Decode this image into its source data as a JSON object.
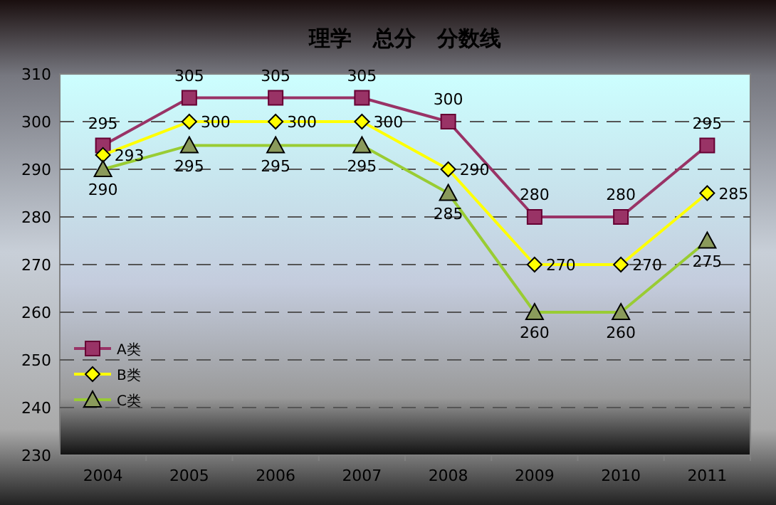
{
  "chart_data": {
    "type": "line",
    "title": "理学　总分　分数线",
    "categories": [
      "2004",
      "2005",
      "2006",
      "2007",
      "2008",
      "2009",
      "2010",
      "2011"
    ],
    "series": [
      {
        "name": "A类",
        "color": "#993366",
        "marker": "square",
        "values": [
          295,
          305,
          305,
          305,
          300,
          280,
          280,
          295
        ]
      },
      {
        "name": "B类",
        "color": "#ffff00",
        "marker": "diamond",
        "values": [
          293,
          300,
          300,
          300,
          290,
          270,
          270,
          285
        ]
      },
      {
        "name": "C类",
        "color": "#99cc33",
        "marker": "triangle",
        "values": [
          290,
          295,
          295,
          295,
          285,
          260,
          260,
          275
        ]
      }
    ],
    "ylim": [
      230,
      310
    ],
    "yticks": [
      230,
      240,
      250,
      260,
      270,
      280,
      290,
      300,
      310
    ],
    "grid": "y",
    "legend": "bottom left",
    "data_labels": true
  }
}
